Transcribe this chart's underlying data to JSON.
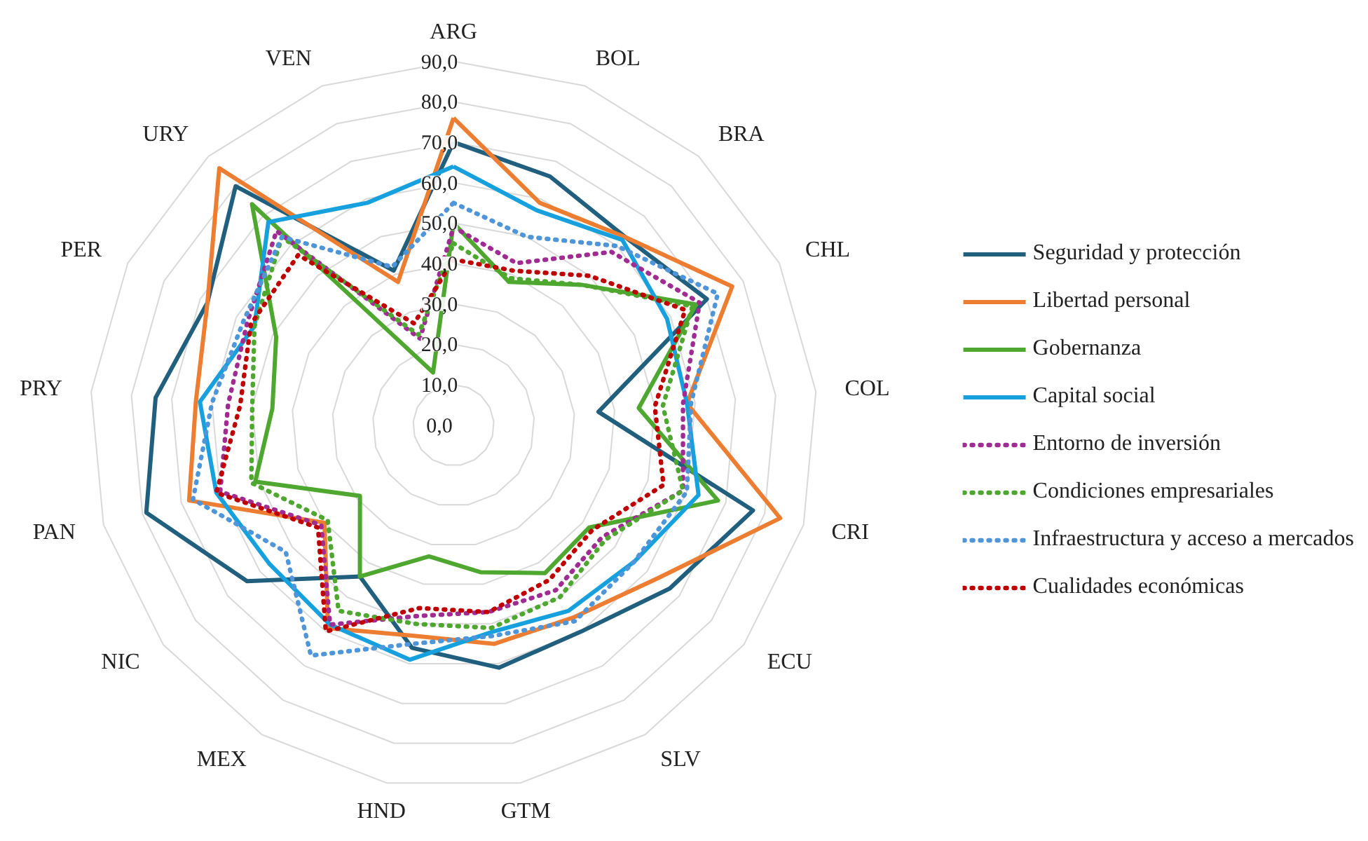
{
  "chart_data": {
    "type": "radar",
    "categories": [
      "ARG",
      "BOL",
      "BRA",
      "CHL",
      "COL",
      "CRI",
      "ECU",
      "SLV",
      "GTM",
      "HND",
      "MEX",
      "NIC",
      "PAN",
      "PRY",
      "PER",
      "URY",
      "VEN"
    ],
    "ylim": [
      0,
      90
    ],
    "yticks": [
      {
        "value": 0,
        "label": "0,0"
      },
      {
        "value": 10,
        "label": "10,0"
      },
      {
        "value": 20,
        "label": "20,0"
      },
      {
        "value": 30,
        "label": "30,0"
      },
      {
        "value": 40,
        "label": "40,0"
      },
      {
        "value": 50,
        "label": "50,0"
      },
      {
        "value": 60,
        "label": "60,0"
      },
      {
        "value": 70,
        "label": "70,0"
      },
      {
        "value": 80,
        "label": "80,0"
      },
      {
        "value": 90,
        "label": "90,0"
      }
    ],
    "grid": true,
    "legend": "right",
    "series": [
      {
        "name": "Seguridad y protección",
        "color": "#215f7f",
        "line_style": "solid",
        "values": [
          70,
          66,
          63,
          70,
          36,
          77,
          67,
          60,
          61,
          56,
          44,
          64,
          79,
          74,
          68,
          80,
          41
        ]
      },
      {
        "name": "Libertad personal",
        "color": "#ed7d31",
        "line_style": "solid",
        "values": [
          76,
          59,
          63,
          77,
          58,
          84,
          63,
          56,
          55,
          53,
          59,
          40,
          68,
          64,
          68,
          86,
          38
        ]
      },
      {
        "name": "Gobernanza",
        "color": "#4ea72e",
        "line_style": "solid",
        "values": [
          50,
          38,
          47,
          67,
          46,
          68,
          42,
          43,
          37,
          33,
          44,
          29,
          51,
          45,
          49,
          74,
          14
        ]
      },
      {
        "name": "Capital social",
        "color": "#16a1de",
        "line_style": "solid",
        "values": [
          64,
          57,
          62,
          59,
          58,
          63,
          56,
          54,
          52,
          59,
          58,
          57,
          61,
          63,
          55,
          68,
          59
        ]
      },
      {
        "name": "Entorno de inversión",
        "color": "#a02b93",
        "line_style": "dotted",
        "values": [
          49,
          43,
          58,
          68,
          57,
          59,
          46,
          48,
          47,
          48,
          58,
          41,
          60,
          56,
          57,
          65,
          23
        ]
      },
      {
        "name": "Condiciones empresariales",
        "color": "#4ea72e",
        "line_style": "dotted",
        "values": [
          45,
          39,
          47,
          66,
          52,
          59,
          47,
          50,
          51,
          50,
          54,
          39,
          52,
          50,
          55,
          63,
          24
        ]
      },
      {
        "name": "Infraestructura y acceso a mercados",
        "color": "#4e95d9",
        "line_style": "dotted",
        "values": [
          55,
          50,
          60,
          73,
          59,
          60,
          56,
          57,
          53,
          55,
          67,
          52,
          67,
          60,
          58,
          63,
          42
        ]
      },
      {
        "name": "Cualidades económicas",
        "color": "#c00000",
        "line_style": "dotted",
        "values": [
          41,
          41,
          50,
          64,
          50,
          54,
          43,
          45,
          47,
          46,
          60,
          42,
          61,
          53,
          56,
          57,
          27
        ]
      }
    ]
  }
}
